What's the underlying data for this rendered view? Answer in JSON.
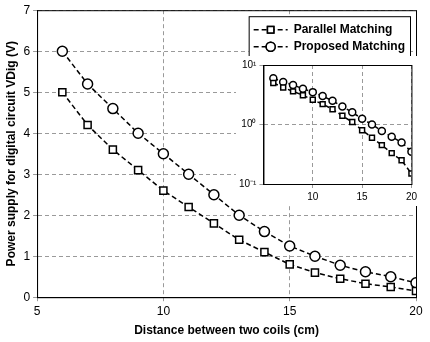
{
  "chart_data": [
    {
      "type": "line",
      "x_label": "Distance between two coils (cm)",
      "y_label": "Power supply for digital circuit VDig (V)",
      "x": [
        6,
        7,
        8,
        9,
        10,
        11,
        12,
        13,
        14,
        15,
        16,
        17,
        18,
        19,
        20
      ],
      "series": [
        {
          "name": "Parallel Matching",
          "color": "#000000",
          "marker": "square",
          "line_style": "dashed",
          "values": [
            5.0,
            4.2,
            3.6,
            3.1,
            2.6,
            2.2,
            1.8,
            1.4,
            1.1,
            0.8,
            0.6,
            0.45,
            0.33,
            0.25,
            0.15
          ]
        },
        {
          "name": "Proposed Matching",
          "color": "#000000",
          "marker": "circle",
          "line_style": "dashed",
          "values": [
            6.0,
            5.2,
            4.6,
            4.0,
            3.5,
            3.0,
            2.5,
            2.0,
            1.6,
            1.25,
            1.0,
            0.78,
            0.62,
            0.5,
            0.35
          ]
        }
      ],
      "xlim": [
        5,
        20
      ],
      "xticks": [
        5,
        10,
        15,
        20
      ],
      "ylim": [
        0,
        7
      ],
      "yticks": [
        0,
        1,
        2,
        3,
        4,
        5,
        6,
        7
      ],
      "grid": true,
      "legend": "upper right"
    },
    {
      "type": "line",
      "x": [
        6,
        7,
        8,
        9,
        10,
        11,
        12,
        13,
        14,
        15,
        16,
        17,
        18,
        19,
        20
      ],
      "series": [
        {
          "name": "Parallel Matching",
          "color": "#000000",
          "marker": "square",
          "line_style": "dashed",
          "values": [
            5.0,
            4.2,
            3.6,
            3.1,
            2.6,
            2.2,
            1.8,
            1.4,
            1.1,
            0.8,
            0.6,
            0.45,
            0.33,
            0.25,
            0.15
          ]
        },
        {
          "name": "Proposed Matching",
          "color": "#000000",
          "marker": "circle",
          "line_style": "dashed",
          "values": [
            6.0,
            5.2,
            4.6,
            4.0,
            3.5,
            3.0,
            2.5,
            2.0,
            1.6,
            1.25,
            1.0,
            0.78,
            0.62,
            0.5,
            0.35
          ]
        }
      ],
      "xlim": [
        5,
        20
      ],
      "xticks": [
        10,
        15,
        20
      ],
      "ylim": [
        0.1,
        10
      ],
      "yticks": [
        {
          "value": 0.1,
          "label": "10⁻¹"
        },
        {
          "value": 1,
          "label": "10⁰"
        },
        {
          "value": 10,
          "label": "10¹"
        }
      ],
      "log": "y",
      "grid": true
    }
  ]
}
